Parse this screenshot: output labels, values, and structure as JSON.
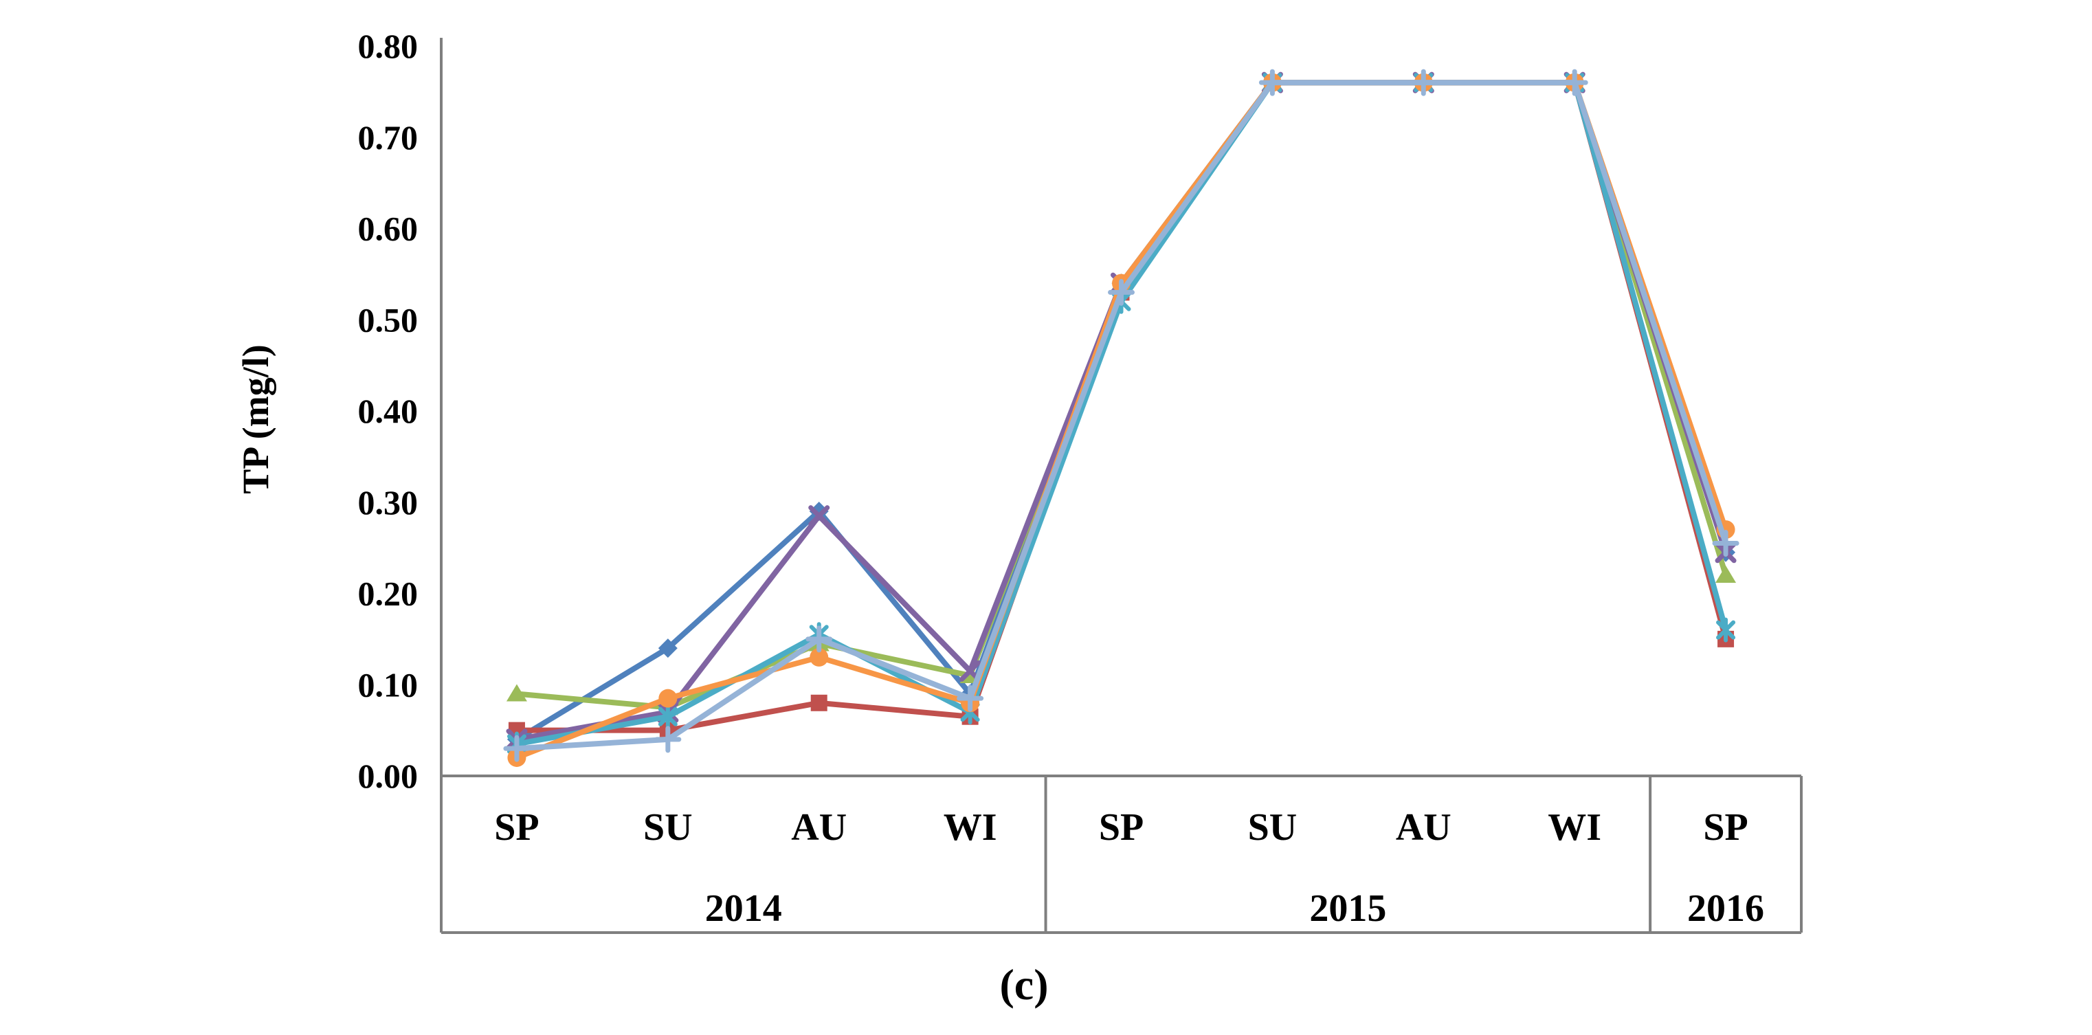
{
  "figure": {
    "caption": "(c)"
  },
  "chart_data": {
    "type": "line",
    "title": "",
    "xlabel": "",
    "ylabel": "TP (mg/l)",
    "ylim": [
      0.0,
      0.8
    ],
    "ytick_step": 0.1,
    "yticks": [
      "0.00",
      "0.10",
      "0.20",
      "0.30",
      "0.40",
      "0.50",
      "0.60",
      "0.70",
      "0.80"
    ],
    "grid": false,
    "legend_position": "none",
    "axis_color": "#7f7f7f",
    "text_color": "#000000",
    "x_groups": [
      {
        "year": "2014",
        "seasons": [
          "SP",
          "SU",
          "AU",
          "WI"
        ]
      },
      {
        "year": "2015",
        "seasons": [
          "SP",
          "SU",
          "AU",
          "WI"
        ]
      },
      {
        "year": "2016",
        "seasons": [
          "SP"
        ]
      }
    ],
    "categories": [
      "SP",
      "SU",
      "AU",
      "WI",
      "SP",
      "SU",
      "AU",
      "WI",
      "SP"
    ],
    "series": [
      {
        "name": "series-1-blue-diamond",
        "color": "#4F81BD",
        "marker": "diamond",
        "values": [
          0.04,
          0.14,
          0.29,
          0.09,
          0.54,
          0.76,
          0.76,
          0.76,
          0.245
        ]
      },
      {
        "name": "series-2-red-square",
        "color": "#C0504D",
        "marker": "square",
        "values": [
          0.05,
          0.05,
          0.08,
          0.065,
          0.53,
          0.76,
          0.76,
          0.76,
          0.15
        ]
      },
      {
        "name": "series-3-green-triangle",
        "color": "#9BBB59",
        "marker": "triangle-up",
        "values": [
          0.09,
          0.075,
          0.145,
          0.11,
          0.54,
          0.76,
          0.76,
          0.76,
          0.22
        ]
      },
      {
        "name": "series-4-purple-x",
        "color": "#8064A2",
        "marker": "x",
        "values": [
          0.04,
          0.07,
          0.285,
          0.115,
          0.54,
          0.76,
          0.76,
          0.76,
          0.245
        ]
      },
      {
        "name": "series-5-teal-asterisk",
        "color": "#4BACC6",
        "marker": "asterisk",
        "values": [
          0.035,
          0.065,
          0.155,
          0.07,
          0.52,
          0.76,
          0.76,
          0.76,
          0.16
        ]
      },
      {
        "name": "series-6-orange-circle",
        "color": "#F79646",
        "marker": "circle",
        "values": [
          0.02,
          0.085,
          0.13,
          0.08,
          0.54,
          0.76,
          0.76,
          0.76,
          0.27
        ]
      },
      {
        "name": "series-7-lightblue-plus",
        "color": "#95B3D7",
        "marker": "plus",
        "values": [
          0.03,
          0.04,
          0.15,
          0.085,
          0.53,
          0.76,
          0.76,
          0.76,
          0.255
        ]
      }
    ]
  }
}
